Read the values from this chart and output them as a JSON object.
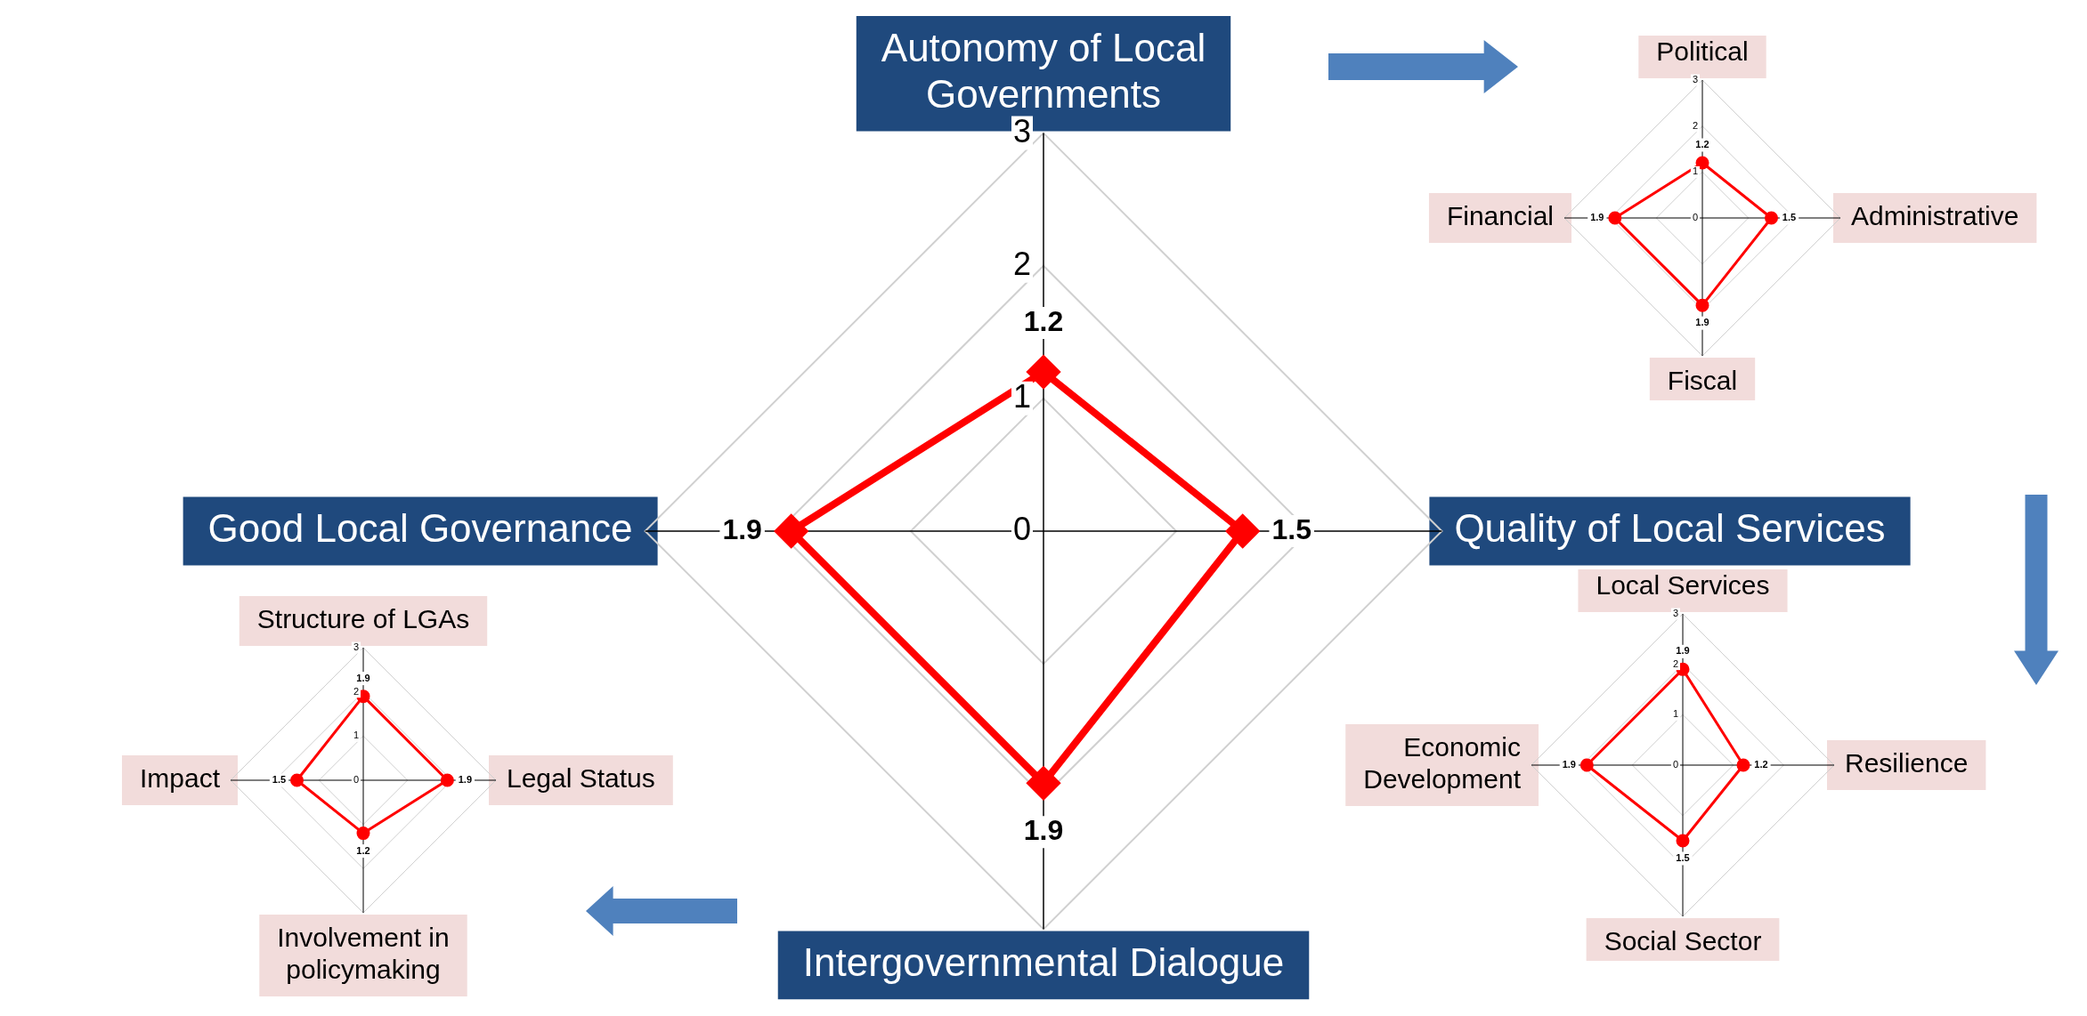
{
  "chart_data": [
    {
      "type": "radar",
      "categories": [
        "Autonomy of Local Governments",
        "Quality of Local Services",
        "Intergovernmental Dialogue",
        "Good Local Governance"
      ],
      "series": [
        {
          "color": "#ff0000",
          "values": [
            1.2,
            1.5,
            1.9,
            1.9
          ]
        }
      ],
      "ylim": [
        0,
        3
      ],
      "yticks": [
        0,
        1,
        2,
        3
      ],
      "grid": true,
      "marker": "diamond",
      "data_labels": true
    },
    {
      "type": "radar",
      "categories": [
        "Political",
        "Administrative",
        "Fiscal",
        "Financial"
      ],
      "series": [
        {
          "color": "#ff0000",
          "values": [
            1.2,
            1.5,
            1.9,
            1.9
          ]
        }
      ],
      "ylim": [
        0,
        3
      ],
      "yticks": [
        0,
        1,
        2,
        3
      ],
      "grid": true,
      "marker": "circle",
      "data_labels": true
    },
    {
      "type": "radar",
      "categories": [
        "Local Services",
        "Resilience",
        "Social Sector",
        "Economic Development"
      ],
      "series": [
        {
          "color": "#ff0000",
          "values": [
            1.9,
            1.2,
            1.5,
            1.9
          ]
        }
      ],
      "ylim": [
        0,
        3
      ],
      "yticks": [
        0,
        1,
        2,
        3
      ],
      "grid": true,
      "marker": "circle",
      "data_labels": true
    },
    {
      "type": "radar",
      "categories": [
        "Structure of LGAs",
        "Legal Status",
        "Involvement in policymaking",
        "Impact"
      ],
      "series": [
        {
          "color": "#ff0000",
          "values": [
            1.9,
            1.9,
            1.2,
            1.5
          ]
        }
      ],
      "ylim": [
        0,
        3
      ],
      "yticks": [
        0,
        1,
        2,
        3
      ],
      "grid": true,
      "marker": "circle",
      "data_labels": true
    }
  ]
}
